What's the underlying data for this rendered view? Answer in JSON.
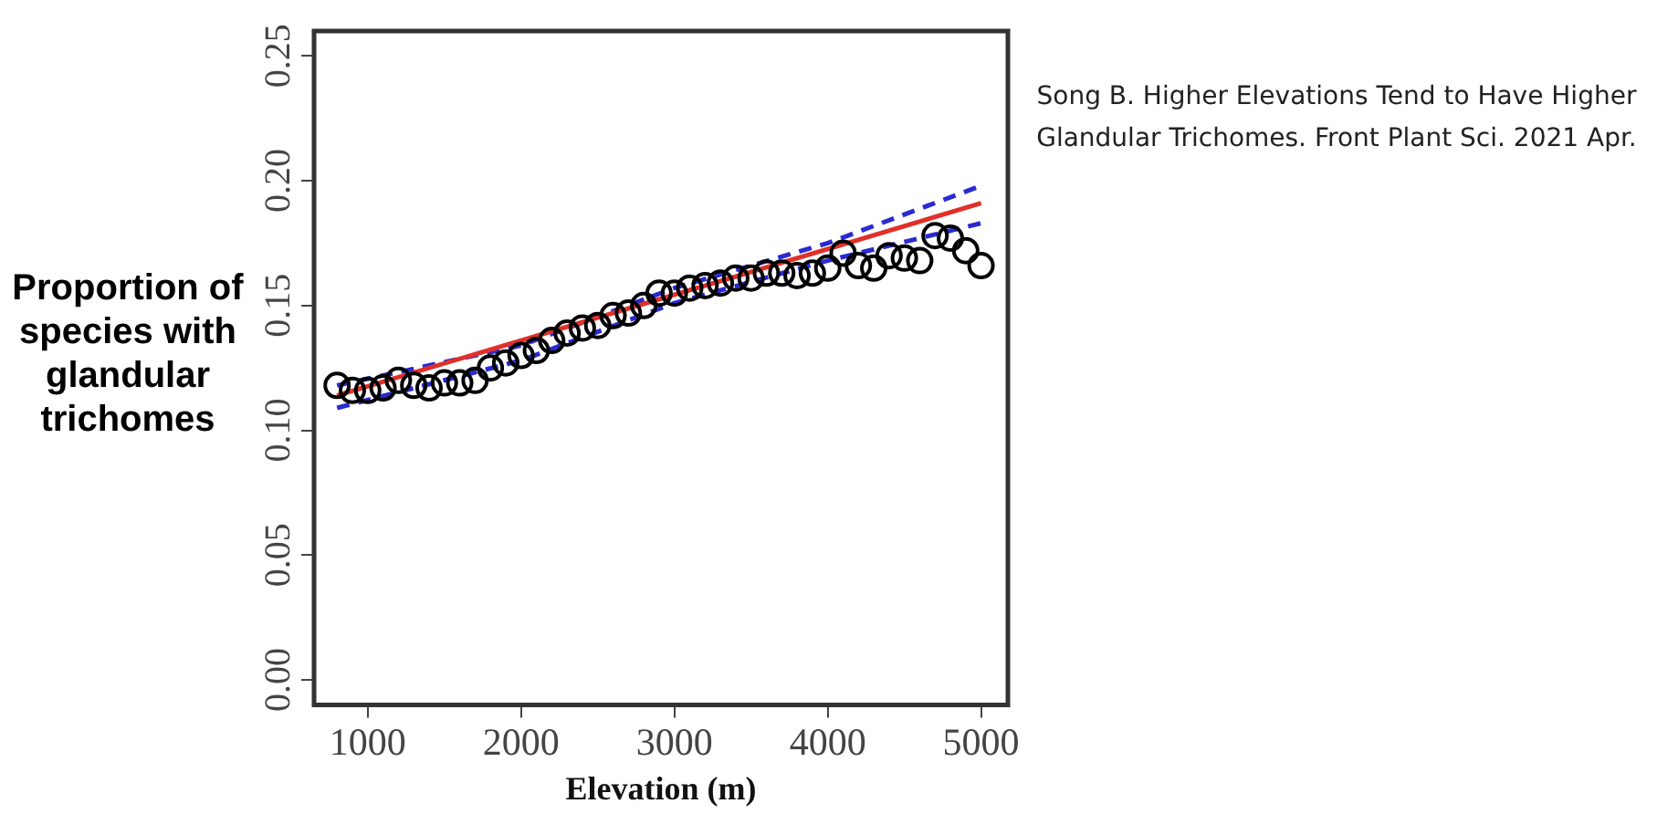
{
  "chart_data": {
    "type": "scatter",
    "xlabel": "Elevation (m)",
    "ylabel": "Proportion of species with glandular trichomes",
    "annotations": [
      "Song B. Higher Elevations Tend to Have Higher Glandular Trichomes. Front Plant Sci. 2021 Apr."
    ],
    "xlim": [
      650,
      5175
    ],
    "xticks": [
      1000,
      2000,
      3000,
      4000,
      5000
    ],
    "ylim": [
      -0.01,
      0.26
    ],
    "yticks": [
      {
        "value": 0,
        "label": "0.00"
      },
      0.05,
      {
        "value": 0.1,
        "label": "0.10"
      },
      0.15,
      {
        "value": 0.2,
        "label": "0.20"
      },
      0.25
    ],
    "marker": "circle",
    "series": [
      {
        "type": "scatter",
        "color": "#000000",
        "x": [
          800,
          900,
          1000,
          1100,
          1200,
          1300,
          1400,
          1500,
          1600,
          1700,
          1800,
          1900,
          2000,
          2100,
          2200,
          2300,
          2400,
          2500,
          2600,
          2700,
          2800,
          2900,
          3000,
          3100,
          3200,
          3300,
          3400,
          3500,
          3600,
          3700,
          3800,
          3900,
          4000,
          4100,
          4200,
          4300,
          4400,
          4500,
          4600,
          4700,
          4800,
          4900,
          5000
        ],
        "values": [
          0.118,
          0.116,
          0.116,
          0.117,
          0.12,
          0.118,
          0.117,
          0.119,
          0.119,
          0.12,
          0.125,
          0.127,
          0.13,
          0.132,
          0.136,
          0.139,
          0.141,
          0.142,
          0.146,
          0.147,
          0.15,
          0.155,
          0.155,
          0.157,
          0.158,
          0.159,
          0.161,
          0.161,
          0.163,
          0.163,
          0.162,
          0.163,
          0.165,
          0.171,
          0.166,
          0.165,
          0.17,
          0.169,
          0.168,
          0.178,
          0.177,
          0.172,
          0.166
        ]
      },
      {
        "type": "line",
        "color": "#e0302a",
        "marker": "none",
        "x": [
          800,
          5000
        ],
        "values": [
          0.114,
          0.191
        ]
      },
      {
        "type": "line",
        "color": "#2a2ad0",
        "marker": "none",
        "line_style": "dashed",
        "x": [
          800,
          2000,
          3000,
          4000,
          5000
        ],
        "values": [
          0.118,
          0.134,
          0.157,
          0.175,
          0.198
        ]
      },
      {
        "type": "line",
        "color": "#2a2ad0",
        "marker": "none",
        "line_style": "dashed",
        "x": [
          800,
          2000,
          3000,
          4000,
          5000
        ],
        "values": [
          0.109,
          0.128,
          0.151,
          0.168,
          0.183
        ]
      }
    ]
  }
}
